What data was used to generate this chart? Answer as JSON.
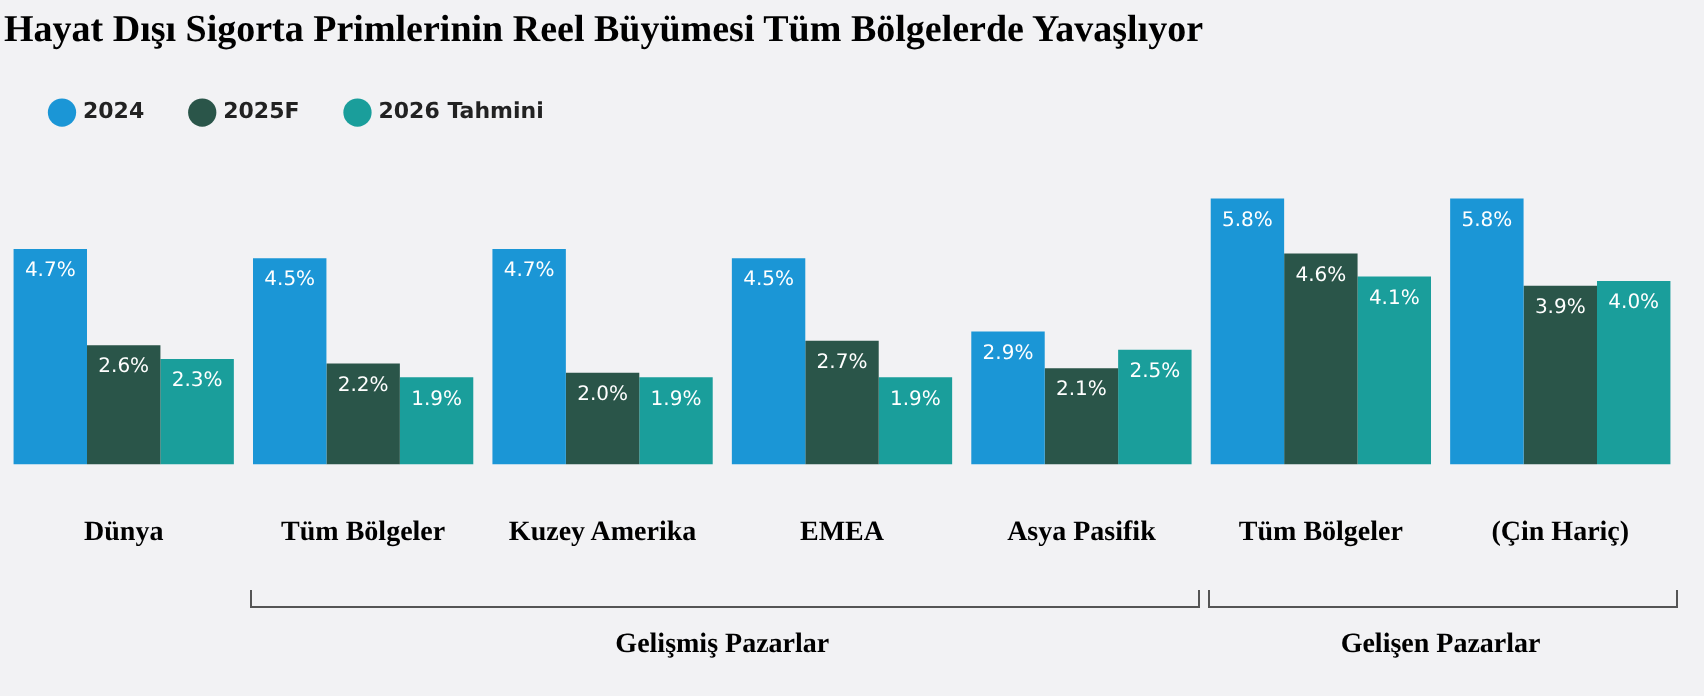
{
  "chart_data": {
    "type": "bar",
    "title": "Hayat Dışı Sigorta Primlerinin Reel Büyümesi Tüm Bölgelerde Yavaşlıyor",
    "categories": [
      "Dünya",
      "Tüm Bölgeler",
      "Kuzey Amerika",
      "EMEA",
      "Asya Pasifik",
      "Tüm Bölgeler",
      "(Çin Hariç)"
    ],
    "series": [
      {
        "name": "2024",
        "color": "#1b96d6",
        "values": [
          4.7,
          4.5,
          4.7,
          4.5,
          2.9,
          5.8,
          5.8
        ],
        "value_labels": [
          "4.7%",
          "4.5%",
          "4.7%",
          "4.5%",
          "2.9%",
          "5.8%",
          "5.8%"
        ]
      },
      {
        "name": "2025F",
        "color": "#2a5549",
        "values": [
          2.6,
          2.2,
          2.0,
          2.7,
          2.1,
          4.6,
          3.9
        ],
        "value_labels": [
          "2.6%",
          "2.2%",
          "2.0%",
          "2.7%",
          "2.1%",
          "4.6%",
          "3.9%"
        ]
      },
      {
        "name": "2026 Tahmini",
        "color": "#1a9e9b",
        "values": [
          2.3,
          1.9,
          1.9,
          1.9,
          2.5,
          4.1,
          4.0
        ],
        "value_labels": [
          "2.3%",
          "1.9%",
          "1.9%",
          "1.9%",
          "2.5%",
          "4.1%",
          "4.0%"
        ]
      }
    ],
    "legend": "top left",
    "grid": false,
    "tick_labels": "x",
    "annotations": [
      "Gelişmiş Pazarlar",
      "Gelişen Pazarlar"
    ]
  }
}
